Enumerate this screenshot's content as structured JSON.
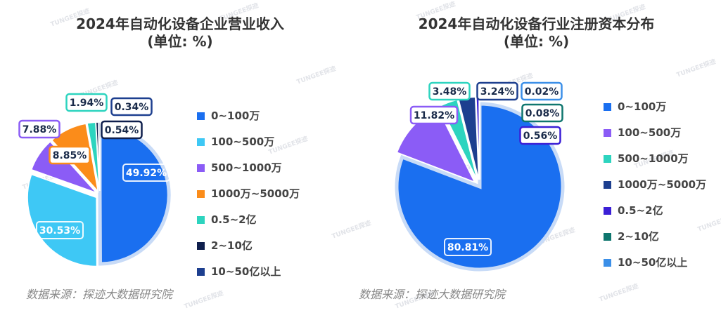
{
  "watermark": "TUNGEE探迹",
  "colors": {
    "blue": "#1a6ff0",
    "cyan": "#3ec8f5",
    "purple": "#8b5cf6",
    "orange": "#fb8c1a",
    "teal": "#2dd4bf",
    "navy": "#0f1f4d",
    "dark_blue": "#1d3f8f",
    "indigo": "#3b1fd6",
    "dark_teal": "#0f766e",
    "light_blue": "#3b8fe8"
  },
  "chart_data": [
    {
      "type": "pie",
      "title": "2024年自动化设备企业营业收入",
      "subtitle": "(单位: %)",
      "source": "数据来源：探迹大数据研究院",
      "legend_position": "right",
      "categories": [
        "0~100万",
        "100~500万",
        "500~1000万",
        "1000万~5000万",
        "0.5~2亿",
        "2~10亿",
        "10~50亿以上"
      ],
      "values": [
        49.92,
        30.53,
        7.88,
        8.85,
        1.94,
        0.54,
        0.34
      ],
      "labels": [
        "49.92%",
        "30.53%",
        "7.88%",
        "8.85%",
        "1.94%",
        "0.54%",
        "0.34%"
      ],
      "colors": [
        "#1a6ff0",
        "#3ec8f5",
        "#8b5cf6",
        "#fb8c1a",
        "#2dd4bf",
        "#0f1f4d",
        "#1d3f8f"
      ],
      "exploded": [
        false,
        true,
        true,
        true,
        true,
        true,
        true
      ]
    },
    {
      "type": "pie",
      "title": "2024年自动化设备行业注册资本分布",
      "subtitle": "(单位: %)",
      "source": "数据来源：探迹大数据研究院",
      "legend_position": "right",
      "categories": [
        "0~100万",
        "100~500万",
        "500~1000万",
        "1000万~5000万",
        "0.5~2亿",
        "2~10亿",
        "10~50亿以上"
      ],
      "values": [
        80.81,
        11.82,
        3.48,
        3.24,
        0.56,
        0.08,
        0.02
      ],
      "labels": [
        "80.81%",
        "11.82%",
        "3.48%",
        "3.24%",
        "0.56%",
        "0.08%",
        "0.02%"
      ],
      "colors": [
        "#1a6ff0",
        "#8b5cf6",
        "#2dd4bf",
        "#1d3f8f",
        "#3b1fd6",
        "#0f766e",
        "#3b8fe8"
      ],
      "legend_colors": [
        "#1a6ff0",
        "#8b5cf6",
        "#2dd4bf",
        "#1d3f8f",
        "#3b1fd6",
        "#0f766e",
        "#3b8fe8"
      ],
      "exploded": [
        false,
        true,
        true,
        true,
        true,
        true,
        true
      ]
    }
  ]
}
